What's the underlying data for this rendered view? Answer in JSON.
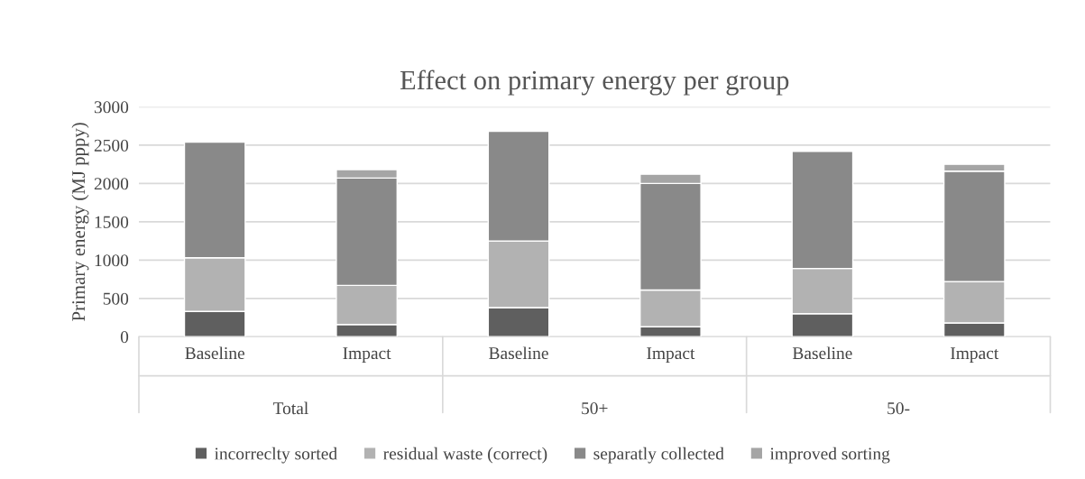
{
  "chart_data": {
    "type": "bar",
    "title": "Effect on primary energy per group",
    "ylabel": "Primary energy (MJ pppy)",
    "categories": [
      "Baseline",
      "Impact",
      "Baseline",
      "Impact",
      "Baseline",
      "Impact"
    ],
    "stacked": true,
    "series": [
      {
        "name": "incorreclty sorted",
        "color": "#5f5f5f",
        "values": [
          330,
          160,
          380,
          130,
          300,
          180
        ]
      },
      {
        "name": "residual waste (correct)",
        "color": "#b2b2b2",
        "values": [
          700,
          510,
          870,
          480,
          590,
          540
        ]
      },
      {
        "name": "separatly collected",
        "color": "#898989",
        "values": [
          1510,
          1400,
          1430,
          1390,
          1530,
          1440
        ]
      },
      {
        "name": "improved sorting",
        "color": "#a5a5a5",
        "values": [
          null,
          110,
          null,
          120,
          null,
          90
        ]
      }
    ],
    "annotations": [
      "Total",
      "50+",
      "50-"
    ],
    "ylim": [
      0,
      3000
    ],
    "yticks": [
      0,
      500,
      1000,
      1500,
      2000,
      2500,
      3000
    ],
    "grid": "y",
    "legend": "bottom"
  }
}
